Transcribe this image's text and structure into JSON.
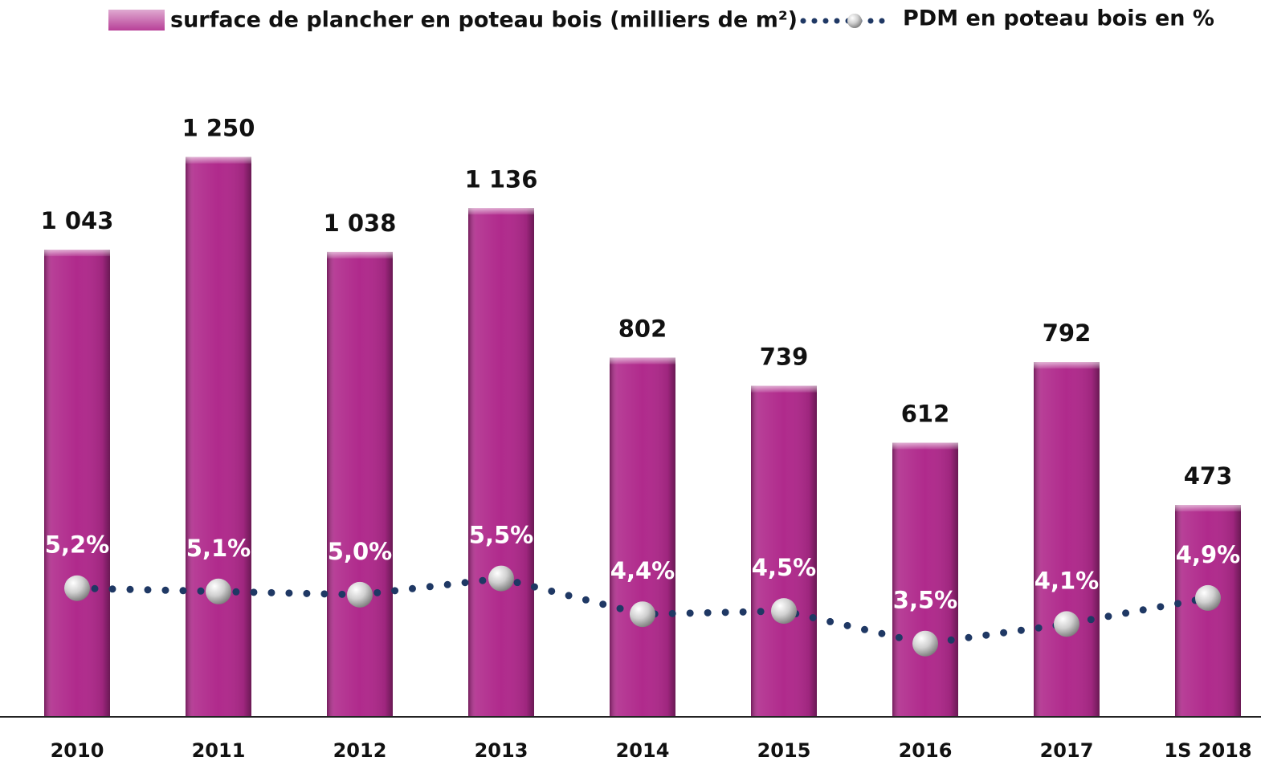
{
  "chart_data": {
    "type": "bar",
    "categories": [
      "2010",
      "2011",
      "2012",
      "2013",
      "2014",
      "2015",
      "2016",
      "2017",
      "1S 2018"
    ],
    "series": [
      {
        "name": "surface de plancher en poteau bois (milliers de m²)",
        "type": "bar",
        "color": "#b02a8c",
        "values": [
          1043,
          1250,
          1038,
          1136,
          802,
          739,
          612,
          792,
          473
        ],
        "value_labels": [
          "1 043",
          "1 250",
          "1 038",
          "1 136",
          "802",
          "739",
          "612",
          "792",
          "473"
        ]
      },
      {
        "name": "PDM en poteau bois en %",
        "type": "line",
        "axis": "y2",
        "color": "#1f3864",
        "values": [
          5.2,
          5.1,
          5.0,
          5.5,
          4.4,
          4.5,
          3.5,
          4.1,
          4.9
        ],
        "value_labels": [
          "5,2%",
          "5,1%",
          "5,0%",
          "5,5%",
          "4,4%",
          "4,5%",
          "3,5%",
          "4,1%",
          "4,9%"
        ]
      }
    ],
    "ylim": [
      0,
      1400
    ],
    "y2lim": [
      1.25,
      20.5
    ],
    "legend": "top"
  }
}
